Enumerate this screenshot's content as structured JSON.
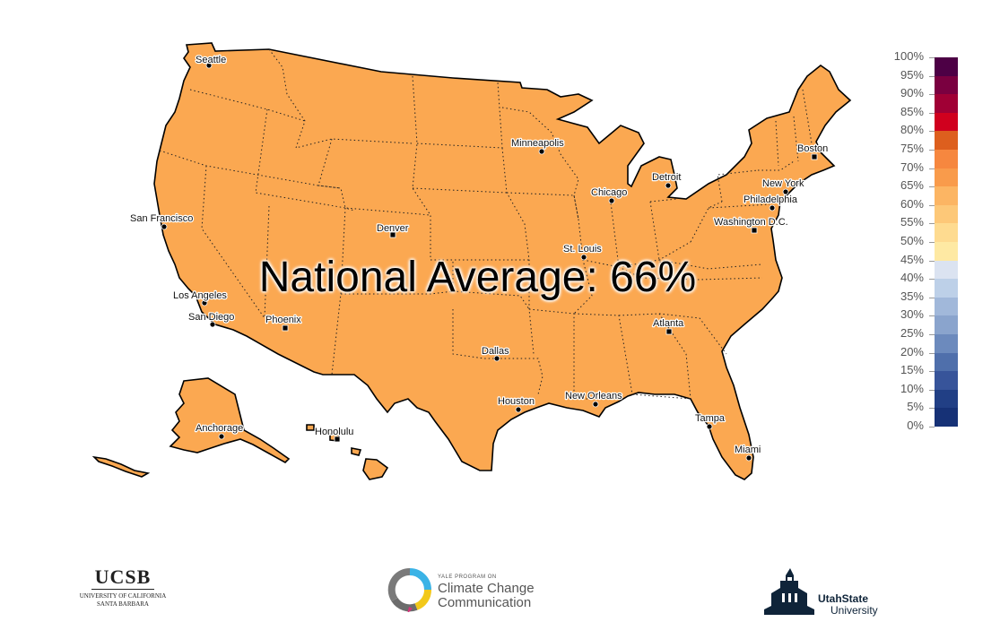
{
  "map": {
    "national_average_text": "National Average: 66%",
    "fill_color": "#fba851",
    "cities": [
      {
        "name": "Seattle",
        "label": "Seattle"
      },
      {
        "name": "San Francisco",
        "label": "San Francisco"
      },
      {
        "name": "Los Angeles",
        "label": "Los Angeles"
      },
      {
        "name": "San Diego",
        "label": "San Diego"
      },
      {
        "name": "Phoenix",
        "label": "Phoenix"
      },
      {
        "name": "Denver",
        "label": "Denver"
      },
      {
        "name": "Dallas",
        "label": "Dallas"
      },
      {
        "name": "Houston",
        "label": "Houston"
      },
      {
        "name": "New Orleans",
        "label": "New Orleans"
      },
      {
        "name": "St. Louis",
        "label": "St. Louis"
      },
      {
        "name": "Minneapolis",
        "label": "Minneapolis"
      },
      {
        "name": "Chicago",
        "label": "Chicago"
      },
      {
        "name": "Detroit",
        "label": "Detroit"
      },
      {
        "name": "Atlanta",
        "label": "Atlanta"
      },
      {
        "name": "Tampa",
        "label": "Tampa"
      },
      {
        "name": "Miami",
        "label": "Miami"
      },
      {
        "name": "Washington D.C.",
        "label": "Washington D.C."
      },
      {
        "name": "Philadelphia",
        "label": "Philadelphia"
      },
      {
        "name": "New York",
        "label": "New York"
      },
      {
        "name": "Boston",
        "label": "Boston"
      },
      {
        "name": "Anchorage",
        "label": "Anchorage"
      },
      {
        "name": "Honolulu",
        "label": "Honolulu"
      }
    ]
  },
  "legend": {
    "labels": [
      "100%",
      "95%",
      "90%",
      "85%",
      "80%",
      "75%",
      "70%",
      "65%",
      "60%",
      "55%",
      "50%",
      "45%",
      "40%",
      "35%",
      "30%",
      "25%",
      "20%",
      "15%",
      "10%",
      "5%",
      "0%"
    ],
    "colors": [
      "#4d0045",
      "#7a0040",
      "#a00035",
      "#d0001e",
      "#dd5f1e",
      "#f6873f",
      "#f99b4b",
      "#fcb563",
      "#fdc878",
      "#fedb90",
      "#fee9a3",
      "#dbe3f1",
      "#bdd0e8",
      "#a1b8da",
      "#8aa4cd",
      "#6c8abd",
      "#4f6fab",
      "#37549a",
      "#213f85",
      "#163176",
      "#0a1f5c"
    ]
  },
  "logos": {
    "ucsb": {
      "mark": "UCSB",
      "line1": "UNIVERSITY OF CALIFORNIA",
      "line2": "SANTA BARBARA"
    },
    "yale": {
      "small": "YALE PROGRAM ON",
      "line1": "Climate Change",
      "line2": "Communication"
    },
    "usu": {
      "line1": "UtahState",
      "line2": "University"
    }
  }
}
